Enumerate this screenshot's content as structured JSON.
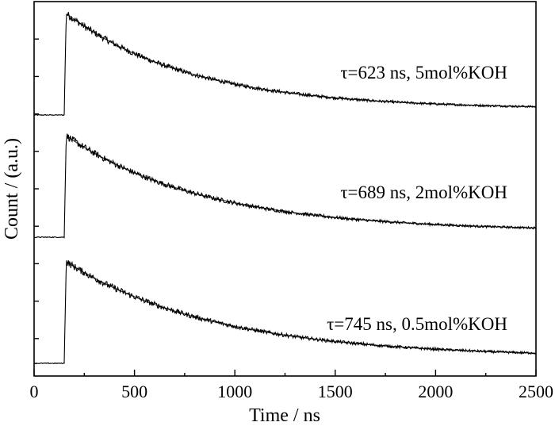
{
  "chart_data": {
    "type": "line",
    "xlabel": "Time / ns",
    "ylabel": "Count / (a.u.)",
    "xlim": [
      0,
      2500
    ],
    "xticks": [
      0,
      500,
      1000,
      1500,
      2000,
      2500
    ],
    "xtick_labels": [
      "0",
      "500",
      "1000",
      "1500",
      "2000",
      "2500"
    ],
    "y_ticks_labeled": false,
    "grid": false,
    "legend": "none",
    "stacked_offset": true,
    "rise_time_ns": 150,
    "series": [
      {
        "name": "τ=623 ns, 5mol%KOH",
        "tau_ns": 623,
        "offset": 2
      },
      {
        "name": "τ=689 ns, 2mol%KOH",
        "tau_ns": 689,
        "offset": 1
      },
      {
        "name": "τ=745 ns, 0.5mol%KOH",
        "tau_ns": 745,
        "offset": 0
      }
    ]
  }
}
